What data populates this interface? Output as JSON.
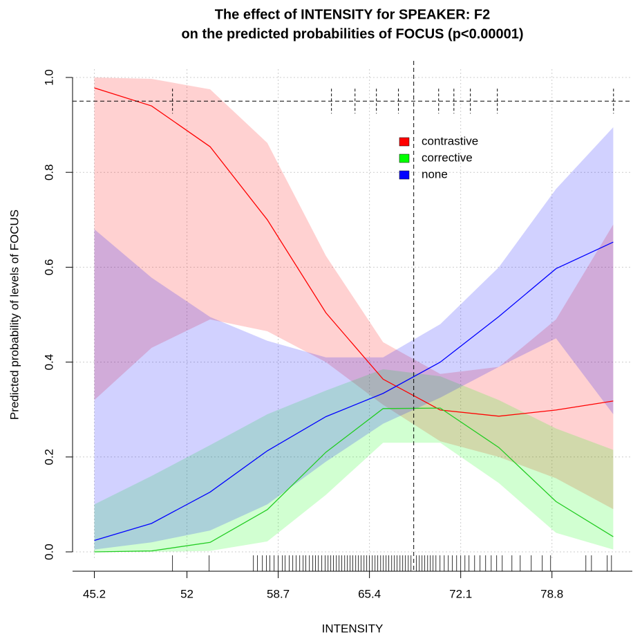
{
  "chart_data": {
    "type": "line",
    "title": [
      "The effect of INTENSITY for SPEAKER: F2",
      "on the predicted probabilities of FOCUS (p<0.00001)"
    ],
    "x_label": "INTENSITY",
    "y_label": "Predicted probability of levels of FOCUS",
    "x": [
      45.2,
      49.4,
      53.7,
      57.9,
      62.2,
      66.4,
      70.6,
      74.9,
      79.1,
      83.3
    ],
    "series": [
      {
        "name": "contrastive",
        "color": "#ff0000",
        "values": [
          0.978,
          0.94,
          0.854,
          0.7,
          0.504,
          0.364,
          0.299,
          0.286,
          0.299,
          0.318
        ],
        "upper": [
          1.0,
          0.997,
          0.975,
          0.862,
          0.624,
          0.442,
          0.375,
          0.39,
          0.49,
          0.69
        ],
        "lower": [
          0.32,
          0.43,
          0.49,
          0.465,
          0.4,
          0.31,
          0.233,
          0.2,
          0.155,
          0.09
        ]
      },
      {
        "name": "corrective",
        "color": "#00ff00",
        "values": [
          0.0,
          0.002,
          0.02,
          0.089,
          0.21,
          0.302,
          0.303,
          0.22,
          0.106,
          0.032
        ],
        "upper": [
          0.1,
          0.16,
          0.225,
          0.29,
          0.34,
          0.385,
          0.37,
          0.32,
          0.26,
          0.215
        ],
        "lower": [
          0.0,
          0.0,
          0.002,
          0.022,
          0.12,
          0.23,
          0.23,
          0.145,
          0.04,
          0.005
        ]
      },
      {
        "name": "none",
        "color": "#0000ff",
        "values": [
          0.024,
          0.06,
          0.126,
          0.213,
          0.285,
          0.334,
          0.4,
          0.496,
          0.597,
          0.653
        ],
        "upper": [
          0.68,
          0.578,
          0.495,
          0.445,
          0.41,
          0.41,
          0.48,
          0.6,
          0.765,
          0.895
        ],
        "lower": [
          0.005,
          0.02,
          0.045,
          0.1,
          0.19,
          0.27,
          0.325,
          0.39,
          0.45,
          0.29
        ]
      }
    ],
    "xlim": [
      43.6,
      84.7
    ],
    "ylim": [
      0,
      1
    ],
    "xticks": [
      45.2,
      52,
      58.7,
      65.4,
      72.1,
      78.8
    ],
    "yticks": [
      {
        "value": 0,
        "label": "0.0"
      },
      0.2,
      0.4,
      0.6,
      0.8,
      {
        "value": 1,
        "label": "1.0"
      }
    ],
    "grid": true,
    "legend": "top-right",
    "hline": 0.95,
    "vline": 68.65,
    "hline_marks_x": [
      50.94,
      62.61,
      64.34,
      65.91,
      67.53,
      70.48,
      71.6,
      72.81,
      74.79,
      83.32
    ],
    "rug": [
      50.94,
      53.63,
      56.88,
      57.18,
      57.54,
      57.84,
      58.09,
      58.4,
      58.7,
      59.01,
      59.21,
      59.51,
      59.77,
      60.02,
      60.28,
      60.53,
      60.73,
      60.99,
      61.24,
      61.44,
      61.65,
      61.9,
      62.15,
      62.36,
      62.56,
      62.76,
      62.97,
      63.17,
      63.37,
      63.58,
      63.78,
      63.98,
      64.18,
      64.39,
      64.59,
      64.79,
      65.0,
      65.2,
      65.4,
      65.61,
      65.81,
      66.01,
      66.22,
      66.42,
      66.62,
      66.82,
      67.03,
      67.23,
      67.43,
      67.64,
      67.84,
      68.04,
      68.25,
      68.45,
      68.85,
      69.06,
      69.26,
      69.46,
      69.67,
      69.87,
      70.07,
      70.28,
      70.58,
      70.89,
      71.19,
      71.49,
      71.8,
      72.1,
      72.41,
      72.71,
      73.12,
      73.52,
      73.93,
      74.34,
      74.74,
      75.15,
      75.86,
      76.47,
      77.28,
      78.09,
      78.7,
      81.29,
      81.7,
      82.86,
      83.17
    ]
  }
}
